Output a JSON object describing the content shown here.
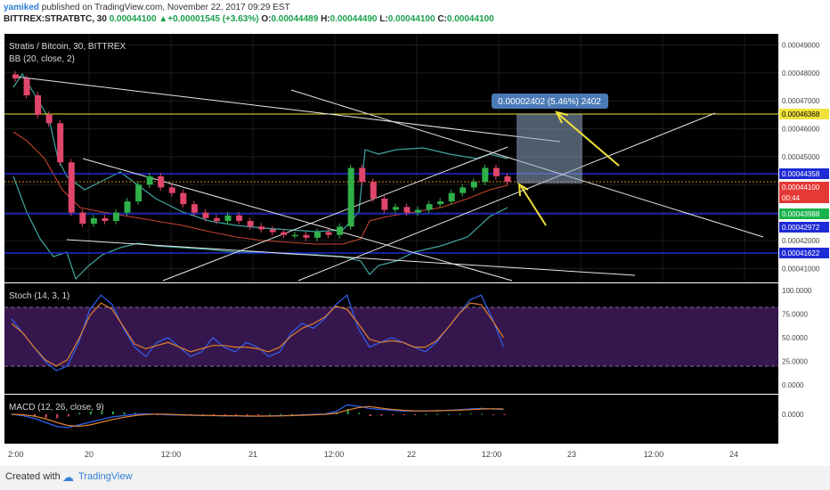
{
  "header": {
    "user": "yamiked",
    "published_text": " published on TradingView.com, November 22, 2017 09:29 EST",
    "symbol": "BITTREX:STRATBTC, 30",
    "price": "0.00044100",
    "change": "▲+0.00001545 (+3.63%)",
    "ohlc": [
      {
        "label": " O:",
        "value": "0.00044489"
      },
      {
        "label": " H:",
        "value": "0.00044490"
      },
      {
        "label": " L:",
        "value": "0.00044100"
      },
      {
        "label": " C:",
        "value": "0.00044100"
      }
    ]
  },
  "legends": {
    "main_title": "Stratis / Bitcoin, 30, BITTREX",
    "bb": "BB (20, close, 2)",
    "stoch": "Stoch (14, 3, 1)",
    "macd": "MACD (12, 26, close, 9)"
  },
  "price_axis": {
    "ticks": [
      "0.00049000",
      "0.00048000",
      "0.00047000",
      "0.00046000",
      "0.00045000",
      "0.00044000",
      "0.00043000",
      "0.00042000",
      "0.00041000"
    ],
    "labels": [
      {
        "text": "0.00046368",
        "color": "#f0e23a"
      },
      {
        "text": "0.00044358",
        "color": "#1e2bd6"
      },
      {
        "text": "0.00044100",
        "color": "#e53935"
      },
      {
        "text": "00:44",
        "color": "#e53935"
      },
      {
        "text": "0.00043988",
        "color": "#19b34a"
      },
      {
        "text": "0.00042972",
        "color": "#1e2bd6"
      },
      {
        "text": "0.00041622",
        "color": "#1e2bd6"
      }
    ]
  },
  "stoch_axis": {
    "ticks": [
      "100.0000",
      "75.0000",
      "50.0000",
      "25.0000",
      "0.0000"
    ]
  },
  "macd_axis": {
    "ticks": [
      "0.0000"
    ]
  },
  "time_axis": {
    "labels": [
      "2:00",
      "20",
      "12:00",
      "21",
      "12:00",
      "22",
      "12:00",
      "23",
      "12:00",
      "24"
    ]
  },
  "measure": {
    "text": "0.00002402 (5.46%) 2402"
  },
  "footer": {
    "created": "Created with",
    "brand": "TradingView"
  },
  "chart_data": {
    "type": "candlestick",
    "title": "Stratis / Bitcoin, 30, BITTREX",
    "series": [
      {
        "name": "STRATBTC close (approx.)",
        "values": [
          0.000478,
          0.000472,
          0.000465,
          0.000462,
          0.000448,
          0.00043,
          0.000426,
          0.000428,
          0.000427,
          0.00043,
          0.000434,
          0.00044,
          0.000443,
          0.000439,
          0.000437,
          0.000433,
          0.00043,
          0.000428,
          0.000427,
          0.000429,
          0.000427,
          0.000425,
          0.000424,
          0.000423,
          0.000422,
          0.000422,
          0.000421,
          0.000423,
          0.000422,
          0.000425,
          0.000446,
          0.000441,
          0.000435,
          0.000431,
          0.000432,
          0.00043,
          0.000431,
          0.000433,
          0.000434,
          0.000437,
          0.000439,
          0.000441,
          0.000446,
          0.000443,
          0.000441
        ]
      },
      {
        "name": "Stoch %K (approx.)",
        "values": [
          70,
          55,
          40,
          25,
          15,
          20,
          45,
          80,
          95,
          85,
          60,
          40,
          30,
          45,
          50,
          40,
          30,
          35,
          50,
          40,
          35,
          45,
          40,
          30,
          35,
          55,
          65,
          60,
          70,
          85,
          95,
          60,
          40,
          45,
          50,
          45,
          40,
          35,
          45,
          60,
          75,
          90,
          95,
          70,
          40
        ]
      },
      {
        "name": "MACD (approx.)",
        "values": [
          0,
          -0.05,
          -0.15,
          -0.3,
          -0.45,
          -0.5,
          -0.4,
          -0.3,
          -0.2,
          -0.1,
          -0.05,
          0,
          0.02,
          0,
          -0.02,
          -0.03,
          -0.04,
          -0.05,
          -0.05,
          -0.06,
          -0.06,
          -0.07,
          -0.07,
          -0.06,
          -0.05,
          -0.04,
          -0.02,
          0,
          0.01,
          0.1,
          0.35,
          0.3,
          0.22,
          0.18,
          0.15,
          0.12,
          0.12,
          0.13,
          0.14,
          0.15,
          0.17,
          0.2,
          0.22,
          0.2,
          0.18
        ]
      }
    ],
    "levels": [
      0.00046368,
      0.00044358,
      0.000441,
      0.00043988,
      0.00042972,
      0.00041622
    ],
    "ylim": [
      0.000405,
      0.000494
    ]
  }
}
